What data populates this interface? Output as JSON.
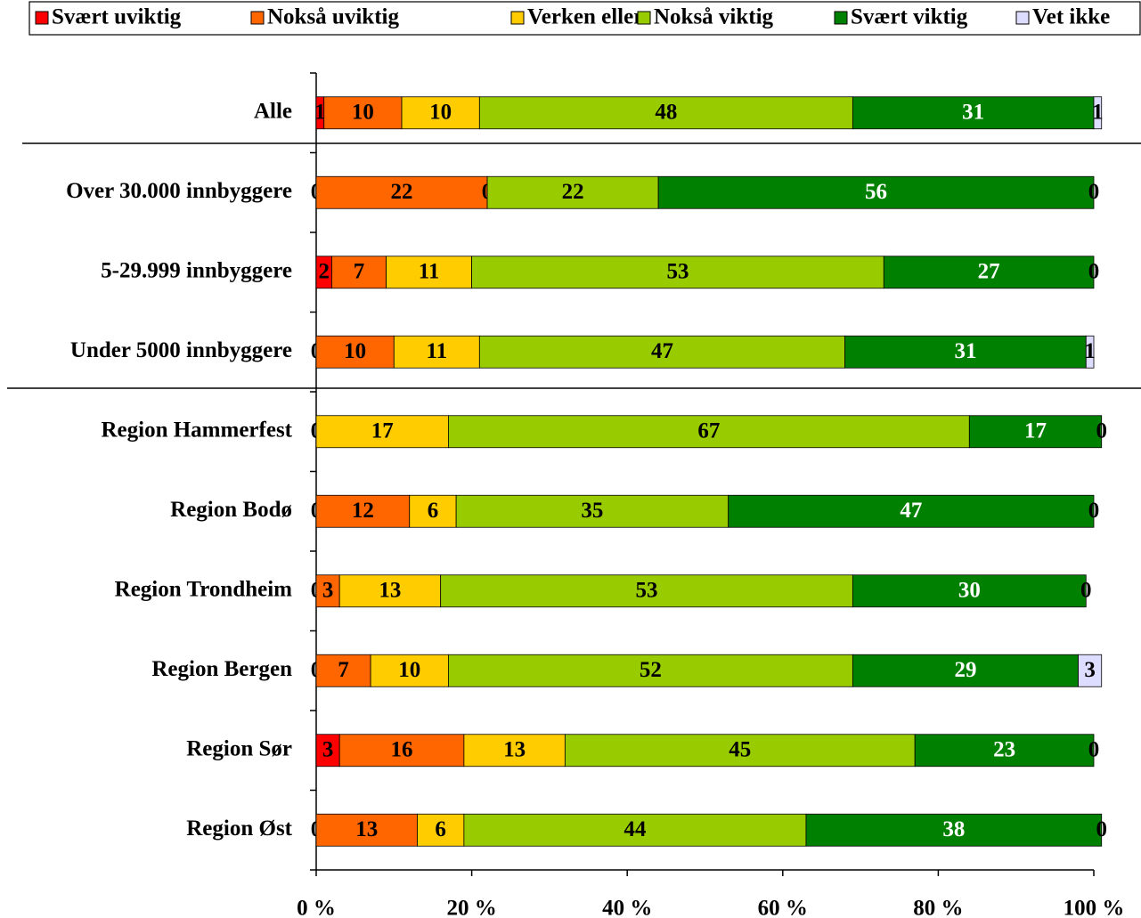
{
  "chart_data": {
    "type": "stacked_barh",
    "categories": [
      "Alle",
      "Over 30.000 innbyggere",
      "5-29.999 innbyggere",
      "Under 5000 innbyggere",
      "Region Hammerfest",
      "Region Bodø",
      "Region Trondheim",
      "Region Bergen",
      "Region Sør",
      "Region Øst"
    ],
    "series": [
      {
        "name": "Svært uviktig",
        "color": "#ff0000",
        "label_color": "#000000",
        "values": [
          1,
          0,
          2,
          0,
          0,
          0,
          0,
          0,
          3,
          0
        ]
      },
      {
        "name": "Nokså uviktig",
        "color": "#ff6600",
        "label_color": "#000000",
        "values": [
          10,
          22,
          7,
          10,
          0,
          12,
          3,
          7,
          16,
          13
        ]
      },
      {
        "name": "Verken eller",
        "color": "#ffcc00",
        "label_color": "#000000",
        "values": [
          10,
          0,
          11,
          11,
          17,
          6,
          13,
          10,
          13,
          6
        ]
      },
      {
        "name": "Nokså viktig",
        "color": "#99cc00",
        "label_color": "#000000",
        "values": [
          48,
          22,
          53,
          47,
          67,
          35,
          53,
          52,
          45,
          44
        ]
      },
      {
        "name": "Svært viktig",
        "color": "#008000",
        "label_color": "#ffffff",
        "values": [
          31,
          56,
          27,
          31,
          17,
          47,
          30,
          29,
          23,
          38
        ]
      },
      {
        "name": "Vet ikke",
        "color": "#ddddff",
        "label_color": "#000000",
        "values": [
          1,
          0,
          0,
          1,
          0,
          0,
          0,
          3,
          0,
          0
        ]
      }
    ],
    "xlim": [
      0,
      100
    ],
    "xticks": [
      {
        "value": 0,
        "label": "0 %"
      },
      {
        "value": 20,
        "label": "20 %"
      },
      {
        "value": 40,
        "label": "40 %"
      },
      {
        "value": 60,
        "label": "60 %"
      },
      {
        "value": 80,
        "label": "80 %"
      },
      {
        "value": 100,
        "label": "100 %"
      }
    ],
    "legend": "top"
  }
}
